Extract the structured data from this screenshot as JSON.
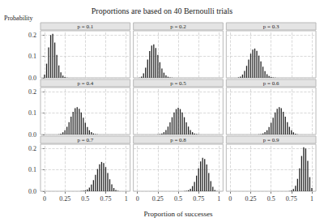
{
  "title": "Proportions are based on 40 Bernoulli trials",
  "xlabel": "Proportion of successes",
  "ylabel": "Probability",
  "chart_data": [
    {
      "type": "bar",
      "title": "p = 0.1",
      "x": [
        0,
        0.025,
        0.05,
        0.075,
        0.1,
        0.125,
        0.15,
        0.175,
        0.2,
        0.225,
        0.25,
        0.275,
        0.3,
        0.325,
        0.35,
        0.375,
        0.4,
        0.425,
        0.45,
        0.475,
        0.5,
        0.525,
        0.55,
        0.575,
        0.6,
        0.625,
        0.65,
        0.675,
        0.7,
        0.725,
        0.75,
        0.775,
        0.8,
        0.825,
        0.85,
        0.875,
        0.9,
        0.925,
        0.95,
        0.975,
        1
      ],
      "values": [
        0.015,
        0.066,
        0.142,
        0.2,
        0.206,
        0.165,
        0.107,
        0.058,
        0.026,
        0.01,
        0.004,
        0.001,
        0,
        0,
        0,
        0,
        0,
        0,
        0,
        0,
        0,
        0,
        0,
        0,
        0,
        0,
        0,
        0,
        0,
        0,
        0,
        0,
        0,
        0,
        0,
        0,
        0,
        0,
        0,
        0,
        0
      ],
      "color": "#222222",
      "xlim": [
        -0.05,
        1.05
      ],
      "xticks": [
        0,
        0.25,
        0.5,
        0.75,
        1
      ],
      "ylim": [
        0,
        0.22
      ],
      "yticks": [
        {
          "value": 0,
          "label": "0.0"
        },
        0.1,
        0.2
      ],
      "grid": true,
      "tick_labels": "y"
    },
    {
      "type": "bar",
      "title": "p = 0.2",
      "x": [
        0,
        0.025,
        0.05,
        0.075,
        0.1,
        0.125,
        0.15,
        0.175,
        0.2,
        0.225,
        0.25,
        0.275,
        0.3,
        0.325,
        0.35,
        0.375,
        0.4,
        0.425,
        0.45,
        0.475,
        0.5,
        0.525,
        0.55,
        0.575,
        0.6,
        0.625,
        0.65,
        0.675,
        0.7,
        0.725,
        0.75,
        0.775,
        0.8,
        0.825,
        0.85,
        0.875,
        0.9,
        0.925,
        0.95,
        0.975,
        1
      ],
      "values": [
        0,
        0.001,
        0.006,
        0.021,
        0.047,
        0.085,
        0.125,
        0.151,
        0.156,
        0.139,
        0.107,
        0.073,
        0.044,
        0.024,
        0.011,
        0.005,
        0.002,
        0.001,
        0,
        0,
        0,
        0,
        0,
        0,
        0,
        0,
        0,
        0,
        0,
        0,
        0,
        0,
        0,
        0,
        0,
        0,
        0,
        0,
        0,
        0,
        0
      ],
      "color": "#222222",
      "xlim": [
        -0.05,
        1.05
      ],
      "xticks": [
        0,
        0.25,
        0.5,
        0.75,
        1
      ],
      "ylim": [
        0,
        0.22
      ],
      "yticks": [
        {
          "value": 0,
          "label": "0.0"
        },
        0.1,
        0.2
      ],
      "grid": true,
      "tick_labels": false
    },
    {
      "type": "bar",
      "title": "p = 0.3",
      "x": [
        0,
        0.025,
        0.05,
        0.075,
        0.1,
        0.125,
        0.15,
        0.175,
        0.2,
        0.225,
        0.25,
        0.275,
        0.3,
        0.325,
        0.35,
        0.375,
        0.4,
        0.425,
        0.45,
        0.475,
        0.5,
        0.525,
        0.55,
        0.575,
        0.6,
        0.625,
        0.65,
        0.675,
        0.7,
        0.725,
        0.75,
        0.775,
        0.8,
        0.825,
        0.85,
        0.875,
        0.9,
        0.925,
        0.95,
        0.975,
        1
      ],
      "values": [
        0,
        0,
        0,
        0,
        0.002,
        0.006,
        0.015,
        0.032,
        0.056,
        0.085,
        0.113,
        0.132,
        0.137,
        0.126,
        0.104,
        0.077,
        0.052,
        0.031,
        0.017,
        0.009,
        0.004,
        0.002,
        0.001,
        0,
        0,
        0,
        0,
        0,
        0,
        0,
        0,
        0,
        0,
        0,
        0,
        0,
        0,
        0,
        0,
        0,
        0
      ],
      "color": "#222222",
      "xlim": [
        -0.05,
        1.05
      ],
      "xticks": [
        0,
        0.25,
        0.5,
        0.75,
        1
      ],
      "ylim": [
        0,
        0.22
      ],
      "yticks": [
        {
          "value": 0,
          "label": "0.0"
        },
        0.1,
        0.2
      ],
      "grid": true,
      "tick_labels": false
    },
    {
      "type": "bar",
      "title": "p = 0.4",
      "x": [
        0,
        0.025,
        0.05,
        0.075,
        0.1,
        0.125,
        0.15,
        0.175,
        0.2,
        0.225,
        0.25,
        0.275,
        0.3,
        0.325,
        0.35,
        0.375,
        0.4,
        0.425,
        0.45,
        0.475,
        0.5,
        0.525,
        0.55,
        0.575,
        0.6,
        0.625,
        0.65,
        0.675,
        0.7,
        0.725,
        0.75,
        0.775,
        0.8,
        0.825,
        0.85,
        0.875,
        0.9,
        0.925,
        0.95,
        0.975,
        1
      ],
      "values": [
        0,
        0,
        0,
        0,
        0,
        0,
        0,
        0.001,
        0.004,
        0.01,
        0.02,
        0.036,
        0.058,
        0.083,
        0.106,
        0.123,
        0.128,
        0.12,
        0.103,
        0.079,
        0.055,
        0.035,
        0.02,
        0.011,
        0.005,
        0.002,
        0.001,
        0,
        0,
        0,
        0,
        0,
        0,
        0,
        0,
        0,
        0,
        0,
        0,
        0,
        0
      ],
      "color": "#222222",
      "xlim": [
        -0.05,
        1.05
      ],
      "xticks": [
        0,
        0.25,
        0.5,
        0.75,
        1
      ],
      "ylim": [
        0,
        0.22
      ],
      "yticks": [
        {
          "value": 0,
          "label": "0.0"
        },
        0.1,
        0.2
      ],
      "grid": true,
      "tick_labels": "y"
    },
    {
      "type": "bar",
      "title": "p = 0.5",
      "x": [
        0,
        0.025,
        0.05,
        0.075,
        0.1,
        0.125,
        0.15,
        0.175,
        0.2,
        0.225,
        0.25,
        0.275,
        0.3,
        0.325,
        0.35,
        0.375,
        0.4,
        0.425,
        0.45,
        0.475,
        0.5,
        0.525,
        0.55,
        0.575,
        0.6,
        0.625,
        0.65,
        0.675,
        0.7,
        0.725,
        0.75,
        0.775,
        0.8,
        0.825,
        0.85,
        0.875,
        0.9,
        0.925,
        0.95,
        0.975,
        1
      ],
      "values": [
        0,
        0,
        0,
        0,
        0,
        0,
        0,
        0,
        0,
        0,
        0.001,
        0.002,
        0.005,
        0.011,
        0.021,
        0.037,
        0.057,
        0.081,
        0.103,
        0.119,
        0.125,
        0.119,
        0.103,
        0.081,
        0.057,
        0.037,
        0.021,
        0.011,
        0.005,
        0.002,
        0.001,
        0,
        0,
        0,
        0,
        0,
        0,
        0,
        0,
        0,
        0
      ],
      "color": "#222222",
      "xlim": [
        -0.05,
        1.05
      ],
      "xticks": [
        0,
        0.25,
        0.5,
        0.75,
        1
      ],
      "ylim": [
        0,
        0.22
      ],
      "yticks": [
        {
          "value": 0,
          "label": "0.0"
        },
        0.1,
        0.2
      ],
      "grid": true,
      "tick_labels": false
    },
    {
      "type": "bar",
      "title": "p = 0.6",
      "x": [
        0,
        0.025,
        0.05,
        0.075,
        0.1,
        0.125,
        0.15,
        0.175,
        0.2,
        0.225,
        0.25,
        0.275,
        0.3,
        0.325,
        0.35,
        0.375,
        0.4,
        0.425,
        0.45,
        0.475,
        0.5,
        0.525,
        0.55,
        0.575,
        0.6,
        0.625,
        0.65,
        0.675,
        0.7,
        0.725,
        0.75,
        0.775,
        0.8,
        0.825,
        0.85,
        0.875,
        0.9,
        0.925,
        0.95,
        0.975,
        1
      ],
      "values": [
        0,
        0,
        0,
        0,
        0,
        0,
        0,
        0,
        0,
        0,
        0,
        0,
        0,
        0,
        0.001,
        0.002,
        0.005,
        0.011,
        0.02,
        0.035,
        0.055,
        0.079,
        0.103,
        0.12,
        0.128,
        0.123,
        0.106,
        0.083,
        0.058,
        0.036,
        0.02,
        0.01,
        0.004,
        0.001,
        0,
        0,
        0,
        0,
        0,
        0,
        0
      ],
      "color": "#222222",
      "xlim": [
        -0.05,
        1.05
      ],
      "xticks": [
        0,
        0.25,
        0.5,
        0.75,
        1
      ],
      "ylim": [
        0,
        0.22
      ],
      "yticks": [
        {
          "value": 0,
          "label": "0.0"
        },
        0.1,
        0.2
      ],
      "grid": true,
      "tick_labels": false
    },
    {
      "type": "bar",
      "title": "p = 0.7",
      "x": [
        0,
        0.025,
        0.05,
        0.075,
        0.1,
        0.125,
        0.15,
        0.175,
        0.2,
        0.225,
        0.25,
        0.275,
        0.3,
        0.325,
        0.35,
        0.375,
        0.4,
        0.425,
        0.45,
        0.475,
        0.5,
        0.525,
        0.55,
        0.575,
        0.6,
        0.625,
        0.65,
        0.675,
        0.7,
        0.725,
        0.75,
        0.775,
        0.8,
        0.825,
        0.85,
        0.875,
        0.9,
        0.925,
        0.95,
        0.975,
        1
      ],
      "values": [
        0,
        0,
        0,
        0,
        0,
        0,
        0,
        0,
        0,
        0,
        0,
        0,
        0,
        0,
        0,
        0,
        0,
        0,
        0.001,
        0.002,
        0.004,
        0.009,
        0.017,
        0.031,
        0.052,
        0.077,
        0.104,
        0.126,
        0.137,
        0.132,
        0.113,
        0.085,
        0.056,
        0.032,
        0.015,
        0.006,
        0.002,
        0,
        0,
        0,
        0
      ],
      "color": "#222222",
      "xlim": [
        -0.05,
        1.05
      ],
      "xticks": [
        0,
        0.25,
        0.5,
        0.75,
        1
      ],
      "ylim": [
        0,
        0.22
      ],
      "yticks": [
        {
          "value": 0,
          "label": "0.0"
        },
        0.1,
        0.2
      ],
      "grid": true
    },
    {
      "type": "bar",
      "title": "p = 0.8",
      "x": [
        0,
        0.025,
        0.05,
        0.075,
        0.1,
        0.125,
        0.15,
        0.175,
        0.2,
        0.225,
        0.25,
        0.275,
        0.3,
        0.325,
        0.35,
        0.375,
        0.4,
        0.425,
        0.45,
        0.475,
        0.5,
        0.525,
        0.55,
        0.575,
        0.6,
        0.625,
        0.65,
        0.675,
        0.7,
        0.725,
        0.75,
        0.775,
        0.8,
        0.825,
        0.85,
        0.875,
        0.9,
        0.925,
        0.95,
        0.975,
        1
      ],
      "values": [
        0,
        0,
        0,
        0,
        0,
        0,
        0,
        0,
        0,
        0,
        0,
        0,
        0,
        0,
        0,
        0,
        0,
        0,
        0,
        0,
        0,
        0,
        0,
        0.001,
        0.002,
        0.005,
        0.011,
        0.024,
        0.044,
        0.073,
        0.107,
        0.139,
        0.156,
        0.151,
        0.125,
        0.085,
        0.047,
        0.021,
        0.006,
        0.001,
        0
      ],
      "color": "#222222",
      "xlim": [
        -0.05,
        1.05
      ],
      "xticks": [
        0,
        0.25,
        0.5,
        0.75,
        1
      ],
      "ylim": [
        0,
        0.22
      ],
      "yticks": [
        {
          "value": 0,
          "label": "0.0"
        },
        0.1,
        0.2
      ],
      "grid": true,
      "tick_labels": "x"
    },
    {
      "type": "bar",
      "title": "p = 0.9",
      "x": [
        0,
        0.025,
        0.05,
        0.075,
        0.1,
        0.125,
        0.15,
        0.175,
        0.2,
        0.225,
        0.25,
        0.275,
        0.3,
        0.325,
        0.35,
        0.375,
        0.4,
        0.425,
        0.45,
        0.475,
        0.5,
        0.525,
        0.55,
        0.575,
        0.6,
        0.625,
        0.65,
        0.675,
        0.7,
        0.725,
        0.75,
        0.775,
        0.8,
        0.825,
        0.85,
        0.875,
        0.9,
        0.925,
        0.95,
        0.975,
        1
      ],
      "values": [
        0,
        0,
        0,
        0,
        0,
        0,
        0,
        0,
        0,
        0,
        0,
        0,
        0,
        0,
        0,
        0,
        0,
        0,
        0,
        0,
        0,
        0,
        0,
        0,
        0,
        0,
        0,
        0,
        0,
        0.001,
        0.004,
        0.01,
        0.026,
        0.058,
        0.107,
        0.165,
        0.206,
        0.2,
        0.142,
        0.066,
        0.015
      ],
      "color": "#222222",
      "xlim": [
        -0.05,
        1.05
      ],
      "xticks": [
        0,
        0.25,
        0.5,
        0.75,
        1
      ],
      "ylim": [
        0,
        0.22
      ],
      "yticks": [
        {
          "value": 0,
          "label": "0.0"
        },
        0.1,
        0.2
      ],
      "grid": true,
      "tick_labels": "x"
    }
  ]
}
